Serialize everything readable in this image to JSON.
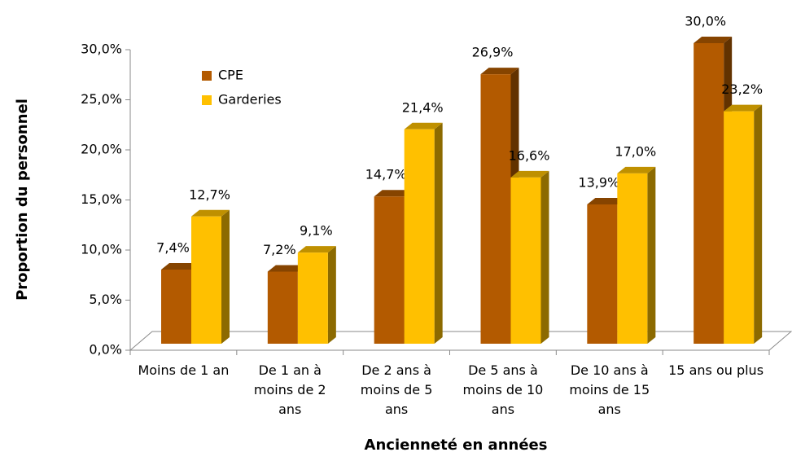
{
  "chart_data": {
    "type": "bar3d",
    "xlabel": "Ancienneté en années",
    "ylabel": "Proportion du personnel",
    "categories": [
      "Moins de 1 an",
      "De 1 an à moins de 2 ans",
      "De 2 ans à moins de 5 ans",
      "De 5 ans à moins de 10 ans",
      "De 10 ans à moins de 15 ans",
      "15 ans ou plus"
    ],
    "series": [
      {
        "name": "CPE",
        "color": "#b35a00",
        "values": [
          7.4,
          7.2,
          14.7,
          26.9,
          13.9,
          30.0
        ],
        "value_labels": [
          "7,4%",
          "7,2%",
          "14,7%",
          "26,9%",
          "13,9%",
          "30,0%"
        ]
      },
      {
        "name": "Garderies",
        "color": "#ffc000",
        "values": [
          12.7,
          9.1,
          21.4,
          16.6,
          17.0,
          23.2
        ],
        "value_labels": [
          "12,7%",
          "9,1%",
          "21,4%",
          "16,6%",
          "17,0%",
          "23,2%"
        ]
      }
    ],
    "ylim": [
      0,
      30
    ],
    "yticks": [
      {
        "value": 0,
        "label": "0,0%"
      },
      {
        "value": 5,
        "label": "5,0%"
      },
      {
        "value": 10,
        "label": "10,0%"
      },
      {
        "value": 15,
        "label": "15,0%"
      },
      {
        "value": 20,
        "label": "20,0%"
      },
      {
        "value": 25,
        "label": "25,0%"
      },
      {
        "value": 30,
        "label": "30,0%"
      }
    ],
    "legend": "top-left"
  }
}
